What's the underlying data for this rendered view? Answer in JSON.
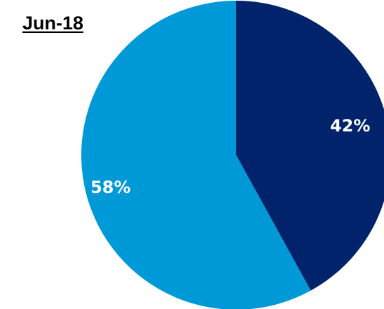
{
  "chart_data": {
    "type": "pie",
    "title": "Jun-18",
    "slices": [
      {
        "label": "42%",
        "value": 42,
        "color": "#00236B"
      },
      {
        "label": "58%",
        "value": 58,
        "color": "#0099D8"
      }
    ]
  }
}
